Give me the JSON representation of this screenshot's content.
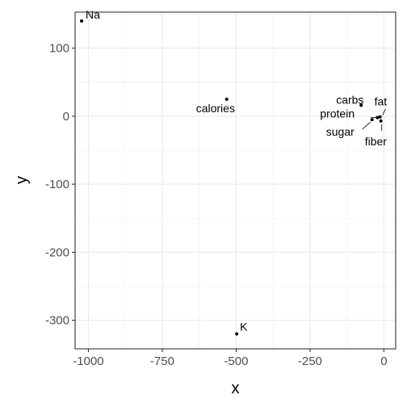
{
  "chart_data": {
    "type": "scatter",
    "title": "",
    "xlabel": "x",
    "ylabel": "y",
    "xlim": [
      -1045,
      40
    ],
    "ylim": [
      -342,
      153
    ],
    "xticks": [
      -1000,
      -750,
      -500,
      -250,
      0
    ],
    "xtick_labels": [
      "-1000",
      "-750",
      "-500",
      "-250",
      "0"
    ],
    "yticks": [
      100,
      0,
      -100,
      -200,
      -300
    ],
    "ytick_labels": [
      "100",
      "0",
      "-100",
      "-200",
      "-300"
    ],
    "grid": true,
    "legend": "none",
    "points": [
      {
        "label": "Na",
        "x": -1023,
        "y": 140
      },
      {
        "label": "calories",
        "x": -532,
        "y": 25
      },
      {
        "label": "carbs",
        "x": -77,
        "y": 16
      },
      {
        "label": "fat",
        "x": -13,
        "y": -1
      },
      {
        "label": "protein",
        "x": -22,
        "y": -2
      },
      {
        "label": "sugar",
        "x": -40,
        "y": -5
      },
      {
        "label": "fiber",
        "x": -10,
        "y": -7
      },
      {
        "label": "K",
        "x": -498,
        "y": -320
      }
    ]
  }
}
